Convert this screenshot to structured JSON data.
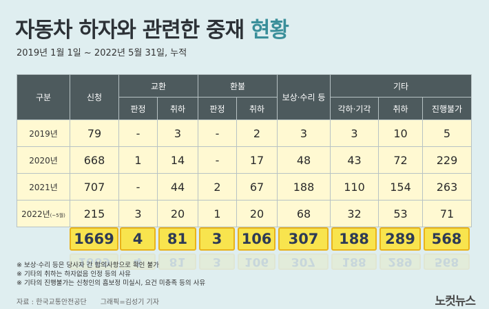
{
  "title_main": "자동차 하자와 관련한 중재",
  "title_highlight": "현황",
  "subtitle": "2019년 1월 1일 ~ 2022년 5월 31일, 누적",
  "headers": {
    "gubun": "구분",
    "sincheong": "신청",
    "gyohwan": "교환",
    "hwanbul": "환불",
    "bosang": "보상·수리 등",
    "gita": "기타",
    "panjeong": "판정",
    "chwiha": "취하",
    "gakha": "각하·기각",
    "jinhaeng": "진행불가"
  },
  "rows": [
    {
      "year": "2019년",
      "note": "",
      "sincheong": "79",
      "gyohwan_panjeong": "-",
      "gyohwan_chwiha": "3",
      "hwanbul_panjeong": "-",
      "hwanbul_chwiha": "2",
      "bosang": "3",
      "gakha": "3",
      "gita_chwiha": "10",
      "jinhaeng": "5"
    },
    {
      "year": "2020년",
      "note": "",
      "sincheong": "668",
      "gyohwan_panjeong": "1",
      "gyohwan_chwiha": "14",
      "hwanbul_panjeong": "-",
      "hwanbul_chwiha": "17",
      "bosang": "48",
      "gakha": "43",
      "gita_chwiha": "72",
      "jinhaeng": "229"
    },
    {
      "year": "2021년",
      "note": "",
      "sincheong": "707",
      "gyohwan_panjeong": "-",
      "gyohwan_chwiha": "44",
      "hwanbul_panjeong": "2",
      "hwanbul_chwiha": "67",
      "bosang": "188",
      "gakha": "110",
      "gita_chwiha": "154",
      "jinhaeng": "263"
    },
    {
      "year": "2022년",
      "note": "(~5월)",
      "sincheong": "215",
      "gyohwan_panjeong": "3",
      "gyohwan_chwiha": "20",
      "hwanbul_panjeong": "1",
      "hwanbul_chwiha": "20",
      "bosang": "68",
      "gakha": "32",
      "gita_chwiha": "53",
      "jinhaeng": "71"
    }
  ],
  "totals": [
    "1669",
    "4",
    "81",
    "3",
    "106",
    "307",
    "188",
    "289",
    "568"
  ],
  "notes": [
    "※ 보상·수리 등은 당사자 간 합의사항으로 확인 불가",
    "※ 기타의 취하는 하자없음 인정 등의 사유",
    "※ 기타의 진행불가는 신청인의 흠보정 미실시, 요건 미충족 등의 사유"
  ],
  "source": "자료 : 한국교통안전공단",
  "credit": "그래픽=김성기 기자",
  "logo": "노컷뉴스",
  "colors": {
    "background": "#dfeef0",
    "header": "#4d5a5d",
    "cell": "#fff9d2",
    "total": "#f8e44e",
    "highlight": "#3a8f9a"
  }
}
